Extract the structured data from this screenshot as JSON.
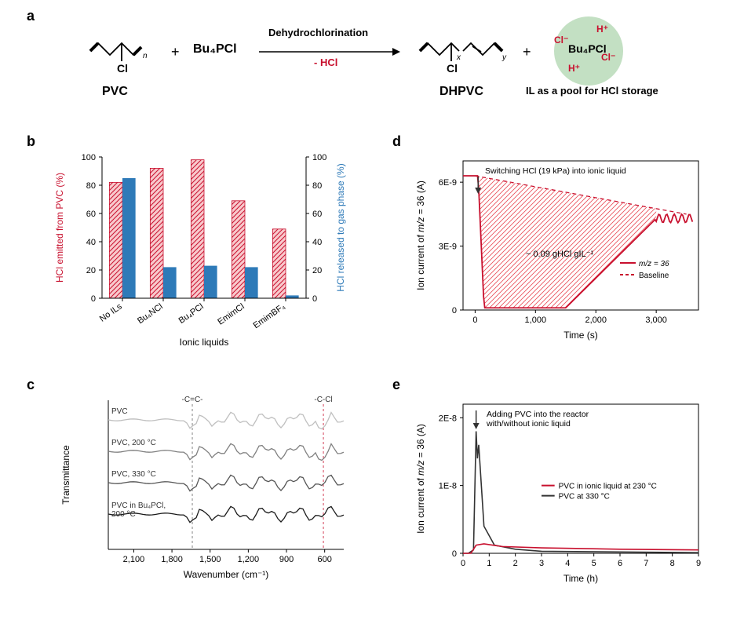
{
  "labels": {
    "a": "a",
    "b": "b",
    "c": "c",
    "d": "d",
    "e": "e"
  },
  "panel_a": {
    "reaction_left1": "PVC",
    "reaction_left2": "Bu₄PCl",
    "reaction_top": "Dehydrochlorination",
    "reaction_bottom": "- HCl",
    "reaction_right1": "DHPVC",
    "reaction_right2": "IL as a pool for HCl storage",
    "circle_center": "Bu₄PCl",
    "circle_h1": "H⁺",
    "circle_h2": "H⁺",
    "circle_cl1": "Cl⁻",
    "circle_cl2": "Cl⁻",
    "colors": {
      "text": "#000000",
      "red": "#c8102e",
      "circle_fill": "#c3e0c3"
    }
  },
  "panel_b": {
    "xlabel": "Ionic liquids",
    "ylabel_left": "HCl emitted from PVC (%)",
    "ylabel_right": "HCl released to gas phase (%)",
    "categories": [
      "No ILs",
      "Bu₄NCl",
      "Bu₄PCl",
      "EmimCl",
      "EmimBF₄"
    ],
    "red_values": [
      82,
      92,
      98,
      69,
      49
    ],
    "blue_values": [
      85,
      22,
      23,
      22,
      2
    ],
    "ylim": [
      0,
      100
    ],
    "ytick_step": 20,
    "bar_colors": {
      "red_fill": "#e84b55",
      "red_stroke": "#c8102e",
      "blue": "#2e7ab8"
    },
    "axis_color": "#000000",
    "label_color_left": "#c8102e",
    "label_color_right": "#2e7ab8"
  },
  "panel_c": {
    "xlabel": "Wavenumber (cm⁻¹)",
    "ylabel": "Transmittance",
    "traces": [
      "PVC",
      "PVC, 200 °C",
      "PVC, 330 °C",
      "PVC in Bu₄PCl,\n200 °C"
    ],
    "xticks": [
      2100,
      1800,
      1500,
      1200,
      900,
      600
    ],
    "vlines": [
      {
        "x": 1640,
        "label": "-C=C-",
        "color": "#666666"
      },
      {
        "x": 610,
        "label": "-C-Cl",
        "color": "#c8102e"
      }
    ],
    "trace_colors": [
      "#bfbfbf",
      "#808080",
      "#555555",
      "#1a1a1a"
    ]
  },
  "panel_d": {
    "xlabel": "Time (s)",
    "ylabel": "Ion current of m/z = 36 (A)",
    "xlim": [
      0,
      3500
    ],
    "xticks": [
      0,
      1000,
      2000,
      3000
    ],
    "yticks_text": [
      "0",
      "3E-9",
      "6E-9"
    ],
    "annotation_arrow": "Switching HCl (19 kPa) into ionic liquid",
    "annotation_center": "~ 0.09 gHCl gIL⁻¹",
    "legend1": "m/z = 36",
    "legend2": "Baseline",
    "colors": {
      "line": "#c8102e",
      "hatch": "#e84b55"
    }
  },
  "panel_e": {
    "xlabel": "Time (h)",
    "ylabel": "Ion current of m/z = 36 (A)",
    "xlim": [
      0,
      9
    ],
    "xticks": [
      0,
      1,
      2,
      3,
      4,
      5,
      6,
      7,
      8,
      9
    ],
    "yticks_text": [
      "0",
      "1E-8",
      "2E-8"
    ],
    "annotation_arrow": "Adding PVC into the reactor\nwith/without ionic liquid",
    "legend1": "PVC in ionic liquid at 230 °C",
    "legend2": "PVC at 330 °C",
    "colors": {
      "red": "#c8102e",
      "black": "#333333"
    }
  }
}
